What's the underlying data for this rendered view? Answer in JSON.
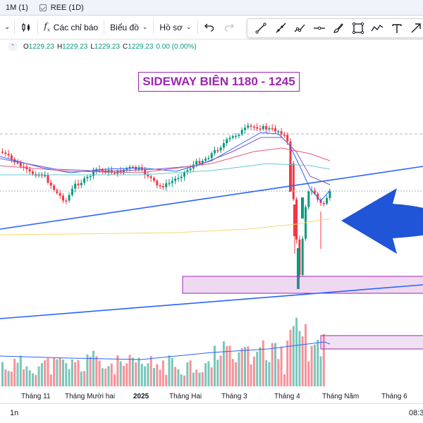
{
  "tabs": [
    {
      "label": "1M (1)"
    },
    {
      "label": "REE (1D)"
    }
  ],
  "toolbar": {
    "indicators_label": "Các chỉ báo",
    "chart_type_label": "Biểu đồ",
    "profile_label": "Hồ sơ"
  },
  "legend": {
    "o_label": "O",
    "o_value": "1229.23",
    "h_label": "H",
    "h_value": "1229.23",
    "l_label": "L",
    "l_value": "1229.23",
    "c_label": "C",
    "c_value": "1229.23",
    "change": "0.00 (0.00%)"
  },
  "annotation": "SIDEWAY BIÊN 1180 - 1245",
  "x_axis_labels": [
    "Tháng 11",
    "Tháng Mười hai",
    "2025",
    "Tháng Hai",
    "Tháng 3",
    "Tháng 4",
    "Tháng Năm",
    "Tháng 6"
  ],
  "bottom": {
    "range_left": "1n",
    "clock": "08:3"
  },
  "colors": {
    "up": "#089981",
    "down": "#f23645",
    "trend": "#2962ff",
    "zone": "#9c27b0",
    "arrow": "#1f55d6"
  },
  "icons": [
    "candles-icon",
    "fx-icon",
    "undo-icon",
    "redo-icon",
    "trend-line-icon",
    "ray-icon",
    "extended-line-icon",
    "horizontal-line-icon",
    "brush-icon",
    "rectangle-icon",
    "path-icon",
    "text-icon",
    "arrow-tool-icon"
  ]
}
